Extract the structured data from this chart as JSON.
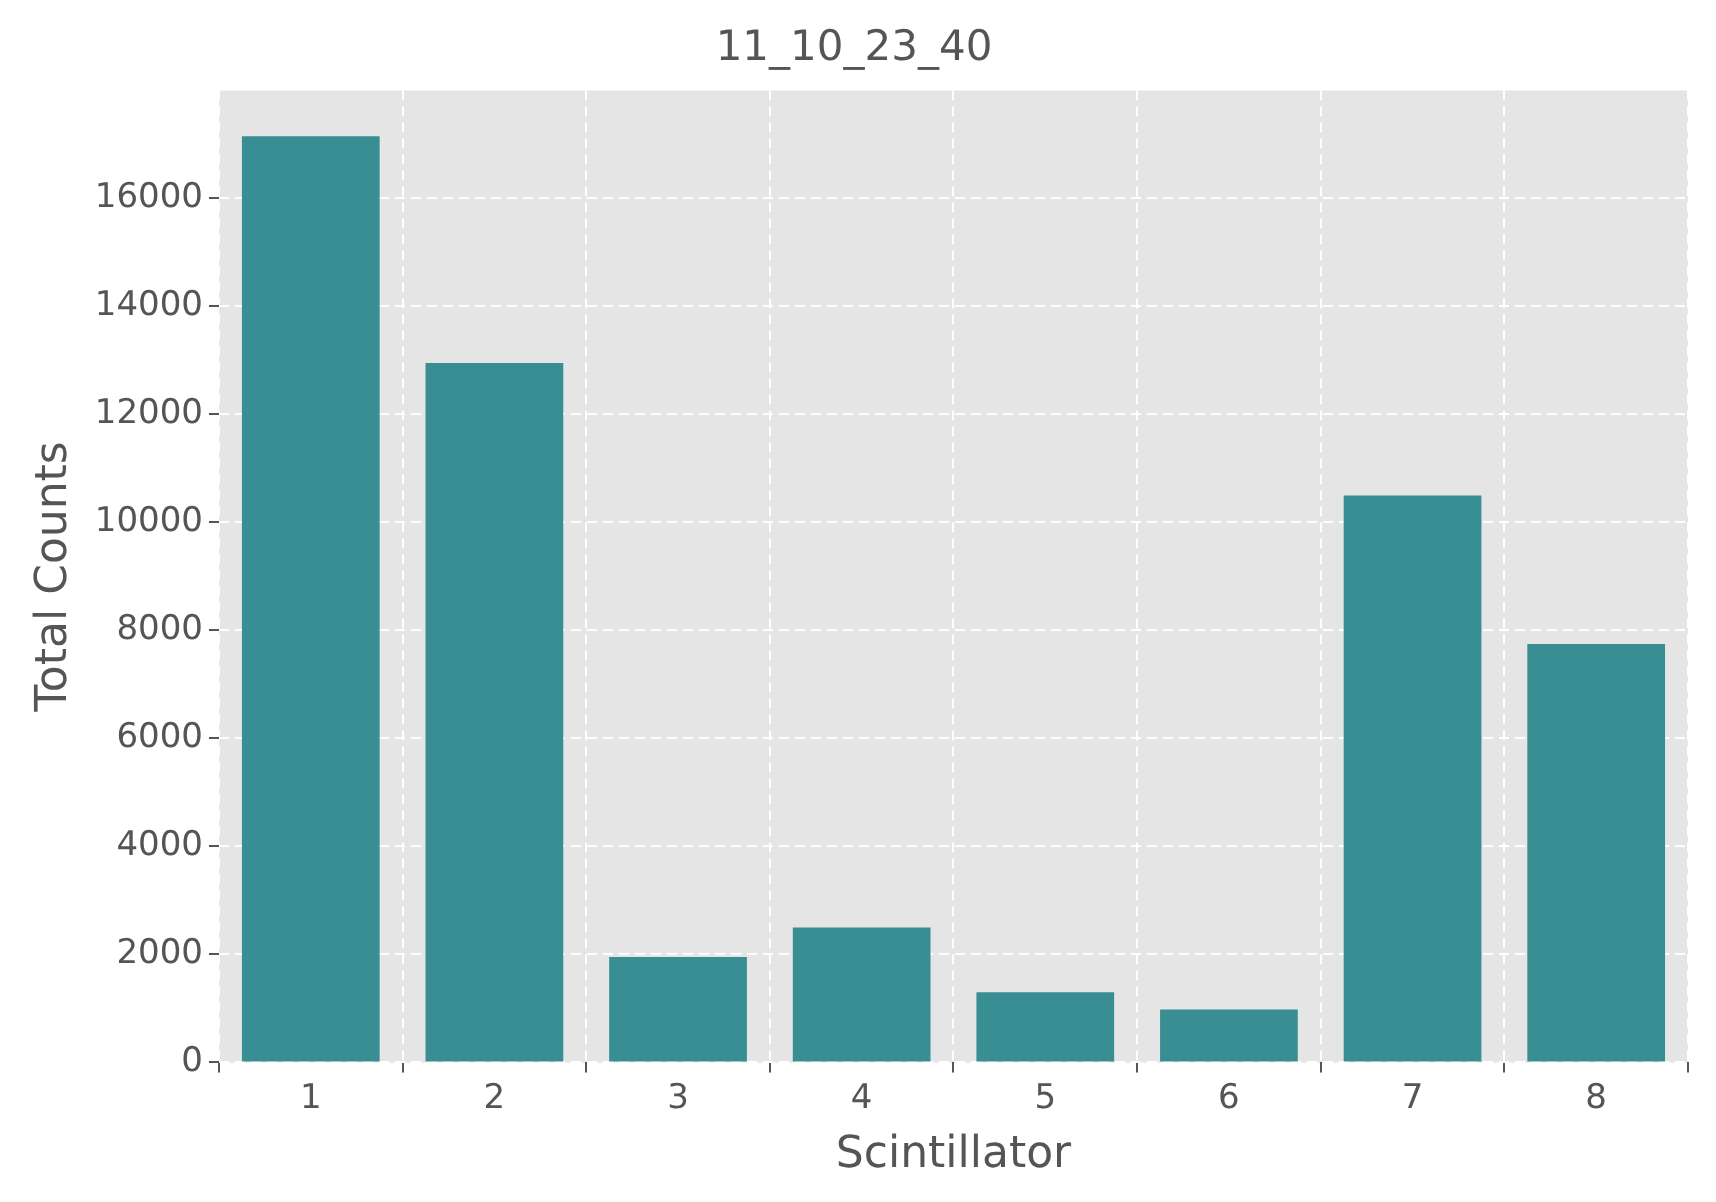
{
  "chart_data": {
    "type": "bar",
    "title": "11_10_23_40",
    "xlabel": "Scintillator",
    "ylabel": "Total Counts",
    "categories": [
      "1",
      "2",
      "3",
      "4",
      "5",
      "6",
      "7",
      "8"
    ],
    "values": [
      17150,
      12950,
      1950,
      2500,
      1300,
      980,
      10500,
      7750
    ],
    "color": "#388e92",
    "ylim": [
      0,
      18000
    ],
    "yticks": [
      0,
      2000,
      4000,
      6000,
      8000,
      10000,
      12000,
      14000,
      16000
    ],
    "grid": true
  }
}
